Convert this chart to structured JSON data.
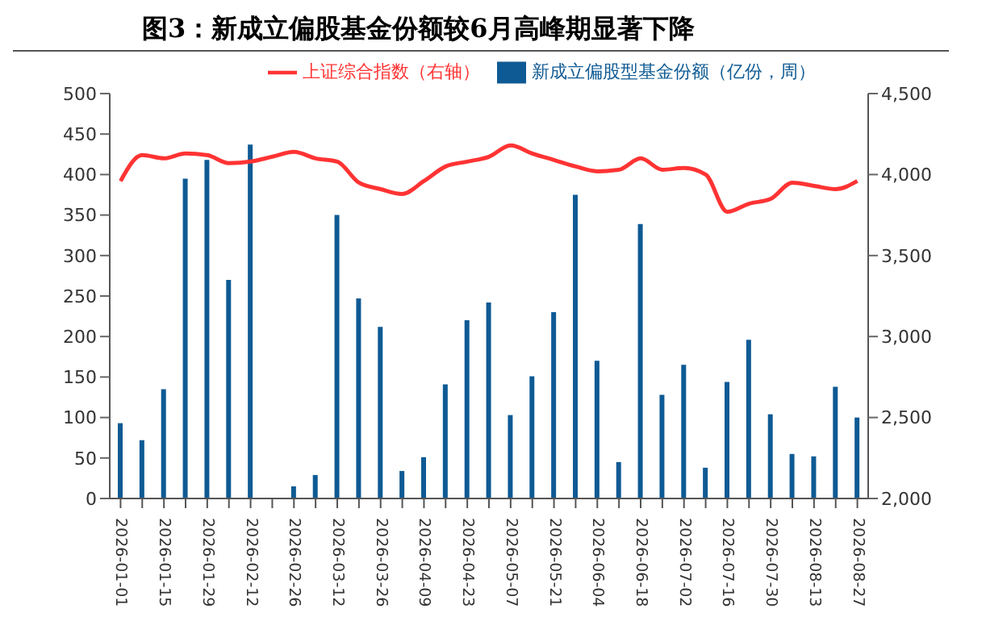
{
  "chart_data": {
    "type": "bar",
    "title": "图3：新成立偏股基金份额较6月高峰期显著下降",
    "categories": [
      "2026-01-01",
      null,
      "2026-01-15",
      null,
      "2026-01-29",
      null,
      "2026-02-12",
      null,
      "2026-02-26",
      null,
      "2026-03-12",
      null,
      "2026-03-26",
      null,
      "2026-04-09",
      null,
      "2026-04-23",
      null,
      "2026-05-07",
      null,
      "2026-05-21",
      null,
      "2026-06-04",
      null,
      "2026-06-18",
      null,
      "2026-07-02",
      null,
      "2026-07-16",
      null,
      "2026-07-30",
      null,
      "2026-08-13",
      null,
      "2026-08-27"
    ],
    "series": [
      {
        "name": "新成立偏股型基金份额（亿份，周）",
        "color": "#0e5a94",
        "values": [
          93,
          72,
          135,
          395,
          418,
          270,
          437,
          0,
          15,
          29,
          350,
          247,
          212,
          34,
          51,
          141,
          220,
          242,
          103,
          151,
          230,
          375,
          170,
          45,
          339,
          128,
          165,
          38,
          144,
          196,
          104,
          55,
          52,
          138,
          100
        ]
      },
      {
        "name": "上证综合指数（右轴）",
        "type": "line",
        "axis": "y2",
        "color": "#ff3333",
        "values": [
          3960,
          4120,
          4100,
          4130,
          4120,
          4070,
          4080,
          4110,
          4140,
          4100,
          4080,
          3950,
          3910,
          3880,
          3960,
          4050,
          4080,
          4110,
          4180,
          4130,
          4090,
          4050,
          4020,
          4030,
          4100,
          4030,
          4040,
          4000,
          3770,
          3820,
          3850,
          3950,
          3930,
          3910,
          3960
        ]
      }
    ],
    "ylim": [
      0,
      500
    ],
    "yticks": [
      0,
      50,
      100,
      150,
      200,
      250,
      300,
      350,
      400,
      450,
      500
    ],
    "y2lim": [
      2000,
      4500
    ],
    "y2ticks": [
      {
        "value": 2000,
        "label": "2,000"
      },
      {
        "value": 2500,
        "label": "2,500"
      },
      {
        "value": 3000,
        "label": "3,000"
      },
      {
        "value": 3500,
        "label": "3,500"
      },
      {
        "value": 4000,
        "label": "4,000"
      },
      {
        "value": 4500,
        "label": "4,500"
      }
    ],
    "grid": false,
    "legend": "top",
    "marker": "none",
    "line_style": "solid"
  }
}
